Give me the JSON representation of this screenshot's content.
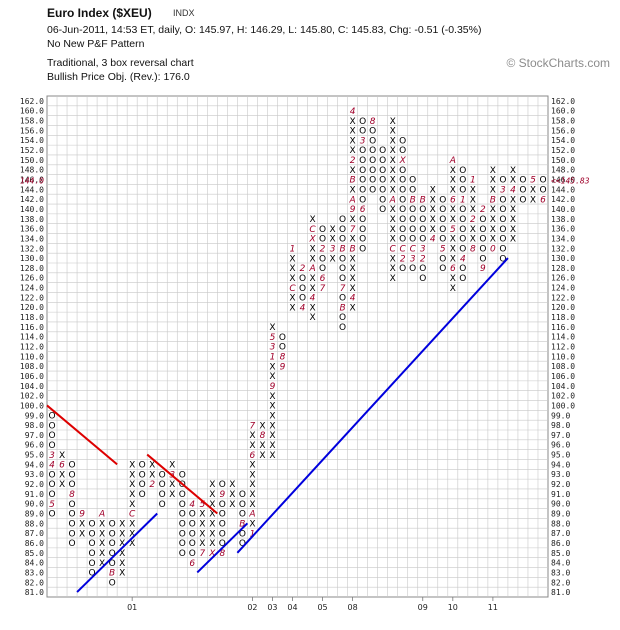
{
  "header": {
    "title": "Euro Index ($XEU)",
    "exchange": "INDX",
    "stats": "06-Jun-2011, 14:53 ET, daily, O: 145.97, H: 146.29, L: 145.80, C: 145.83, Chg: -0.51 (-0.35%)",
    "pattern": "No New P&F Pattern",
    "method": "Traditional, 3 box reversal chart",
    "objective": "Bullish Price Obj. (Rev.): 176.0",
    "brand": "© StockCharts.com"
  },
  "colors": {
    "mark": "#000000",
    "month_mark": "#a0002a",
    "trend_up": "#0000dd",
    "trend_down": "#dd0000",
    "grid": "#c8c8c8"
  },
  "chart_data": {
    "type": "point-and-figure",
    "box_size": 2,
    "reversal": 3,
    "last_price_label": "145.83",
    "ylim": [
      81,
      162
    ],
    "y_ticks": [
      "81.0",
      "82.0",
      "83.0",
      "84.0",
      "85.0",
      "86.0",
      "87.0",
      "88.0",
      "89.0",
      "90.0",
      "91.0",
      "92.0",
      "93.0",
      "94.0",
      "95.0",
      "96.0",
      "97.0",
      "98.0",
      "99.0",
      "100.0",
      "102.0",
      "104.0",
      "106.0",
      "108.0",
      "110.0",
      "112.0",
      "114.0",
      "116.0",
      "118.0",
      "120.0",
      "122.0",
      "124.0",
      "126.0",
      "128.0",
      "130.0",
      "132.0",
      "134.0",
      "136.0",
      "138.0",
      "140.0",
      "142.0",
      "144.0",
      "146.0",
      "148.0",
      "150.0",
      "152.0",
      "154.0",
      "156.0",
      "158.0",
      "160.0",
      "162.0"
    ],
    "x_labels": [
      {
        "col": 8,
        "text": "01"
      },
      {
        "col": 20,
        "text": "02"
      },
      {
        "col": 22,
        "text": "03"
      },
      {
        "col": 24,
        "text": "04"
      },
      {
        "col": 27,
        "text": "05"
      },
      {
        "col": 30,
        "text": "08"
      },
      {
        "col": 37,
        "text": "09"
      },
      {
        "col": 40,
        "text": "10"
      },
      {
        "col": 44,
        "text": "11"
      }
    ],
    "columns": [
      {
        "type": "O",
        "top": 99.0,
        "bottom": 89.0,
        "months": {
          "95.0": "3",
          "94.0": "4",
          "90.0": "5"
        }
      },
      {
        "type": "X",
        "top": 95.0,
        "bottom": 92.0,
        "months": {
          "94.0": "6"
        }
      },
      {
        "type": "O",
        "top": 94.0,
        "bottom": 86.0,
        "months": {
          "95.0": "7",
          "91.0": "8"
        }
      },
      {
        "type": "X",
        "top": 89.0,
        "bottom": 87.0,
        "months": {
          "89.0": "9"
        }
      },
      {
        "type": "O",
        "top": 88.0,
        "bottom": 83.0
      },
      {
        "type": "X",
        "top": 89.0,
        "bottom": 84.0,
        "months": {
          "89.0": "A"
        }
      },
      {
        "type": "O",
        "top": 88.0,
        "bottom": 82.0,
        "months": {
          "83.0": "B"
        }
      },
      {
        "type": "X",
        "top": 88.0,
        "bottom": 83.0
      },
      {
        "type": "X",
        "top": 94.0,
        "bottom": 86.0,
        "months": {
          "95.0": "1",
          "89.0": "C"
        }
      },
      {
        "type": "O",
        "top": 94.0,
        "bottom": 91.0
      },
      {
        "type": "X",
        "top": 94.0,
        "bottom": 92.0,
        "months": {
          "92.0": "2"
        }
      },
      {
        "type": "O",
        "top": 93.0,
        "bottom": 90.0
      },
      {
        "type": "X",
        "top": 94.0,
        "bottom": 91.0,
        "months": {
          "93.0": "3"
        }
      },
      {
        "type": "O",
        "top": 93.0,
        "bottom": 85.0
      },
      {
        "type": "O",
        "top": 90.0,
        "bottom": 84.0,
        "months": {
          "90.0": "4",
          "84.0": "6"
        }
      },
      {
        "type": "X",
        "top": 90.0,
        "bottom": 85.0,
        "months": {
          "90.0": "5",
          "85.0": "7"
        }
      },
      {
        "type": "X",
        "top": 92.0,
        "bottom": 85.0,
        "months": {
          "85.0": "X"
        }
      },
      {
        "type": "O",
        "top": 92.0,
        "bottom": 85.0,
        "months": {
          "91.0": "9",
          "85.0": "8"
        }
      },
      {
        "type": "X",
        "top": 92.0,
        "bottom": 90.0
      },
      {
        "type": "O",
        "top": 91.0,
        "bottom": 86.0,
        "months": {
          "88.0": "B"
        }
      },
      {
        "type": "X",
        "top": 98.0,
        "bottom": 87.0,
        "months": {
          "98.0": "7",
          "95.0": "6",
          "89.0": "A",
          "87.0": "1"
        }
      },
      {
        "type": "X",
        "top": 98.0,
        "bottom": 95.0,
        "months": {
          "97.0": "8"
        }
      },
      {
        "type": "X",
        "top": 116.0,
        "bottom": 95.0,
        "months": {
          "110.0": "1",
          "114.0": "5",
          "112.0": "3",
          "104.0": "9"
        }
      },
      {
        "type": "O",
        "top": 114.0,
        "bottom": 108.0,
        "months": {
          "110.0": "8",
          "108.0": "9"
        }
      },
      {
        "type": "X",
        "top": 132.0,
        "bottom": 120.0,
        "months": {
          "132.0": "1",
          "124.0": "C"
        }
      },
      {
        "type": "O",
        "top": 128.0,
        "bottom": 120.0,
        "months": {
          "120.0": "4",
          "128.0": "2"
        }
      },
      {
        "type": "X",
        "top": 138.0,
        "bottom": 118.0,
        "months": {
          "136.0": "C",
          "134.0": "X",
          "128.0": "A",
          "122.0": "4"
        }
      },
      {
        "type": "O",
        "top": 136.0,
        "bottom": 124.0,
        "months": {
          "132.0": "2",
          "124.0": "7",
          "126.0": "6"
        }
      },
      {
        "type": "X",
        "top": 136.0,
        "bottom": 130.0,
        "months": {
          "132.0": "3"
        }
      },
      {
        "type": "O",
        "top": 138.0,
        "bottom": 116.0,
        "months": {
          "132.0": "B",
          "124.0": "7",
          "120.0": "B"
        }
      },
      {
        "type": "X",
        "top": 160.0,
        "bottom": 120.0,
        "months": {
          "160.0": "4",
          "150.0": "2",
          "146.0": "B",
          "142.0": "A",
          "140.0": "9",
          "136.0": "7",
          "132.0": "B",
          "122.0": "4"
        }
      },
      {
        "type": "O",
        "top": 158.0,
        "bottom": 132.0,
        "months": {
          "154.0": "3",
          "140.0": "6"
        }
      },
      {
        "type": "O",
        "top": 158.0,
        "bottom": 144.0,
        "months": {
          "158.0": "8"
        }
      },
      {
        "type": "O",
        "top": 152.0,
        "bottom": 140.0
      },
      {
        "type": "X",
        "top": 158.0,
        "bottom": 126.0,
        "months": {
          "160.0": "X",
          "142.0": "A",
          "132.0": "C"
        }
      },
      {
        "type": "O",
        "top": 154.0,
        "bottom": 128.0,
        "months": {
          "150.0": "X",
          "132.0": "C",
          "130.0": "2"
        }
      },
      {
        "type": "O",
        "top": 146.0,
        "bottom": 128.0,
        "months": {
          "142.0": "B",
          "132.0": "C",
          "130.0": "3"
        }
      },
      {
        "type": "O",
        "top": 142.0,
        "bottom": 126.0,
        "months": {
          "142.0": "B",
          "132.0": "3",
          "130.0": "2"
        }
      },
      {
        "type": "X",
        "top": 144.0,
        "bottom": 134.0,
        "months": {
          "134.0": "4"
        }
      },
      {
        "type": "O",
        "top": 142.0,
        "bottom": 128.0,
        "months": {
          "132.0": "5"
        }
      },
      {
        "type": "X",
        "top": 150.0,
        "bottom": 124.0,
        "months": {
          "150.0": "A",
          "142.0": "6",
          "136.0": "5",
          "128.0": "6"
        }
      },
      {
        "type": "O",
        "top": 148.0,
        "bottom": 126.0,
        "months": {
          "142.0": "1",
          "130.0": "4",
          "124.0": "7"
        }
      },
      {
        "type": "X",
        "top": 146.0,
        "bottom": 132.0,
        "months": {
          "146.0": "1",
          "138.0": "2",
          "132.0": "8"
        }
      },
      {
        "type": "O",
        "top": 140.0,
        "bottom": 128.0,
        "months": {
          "140.0": "2",
          "128.0": "9"
        }
      },
      {
        "type": "X",
        "top": 148.0,
        "bottom": 132.0,
        "months": {
          "142.0": "B",
          "132.0": "0"
        }
      },
      {
        "type": "O",
        "top": 146.0,
        "bottom": 130.0,
        "months": {
          "144.0": "3"
        }
      },
      {
        "type": "X",
        "top": 148.0,
        "bottom": 134.0,
        "months": {
          "144.0": "4"
        }
      },
      {
        "type": "O",
        "top": 146.0,
        "bottom": 142.0
      },
      {
        "type": "X",
        "top": 146.0,
        "bottom": 142.0,
        "months": {
          "146.0": "5"
        }
      },
      {
        "type": "O",
        "top": 146.0,
        "bottom": 142.0,
        "months": {
          "142.0": "6"
        }
      }
    ],
    "trendlines": [
      {
        "type": "down",
        "from": {
          "col": 0,
          "y": 100.0
        },
        "to": {
          "col": 6,
          "y": 94.0
        }
      },
      {
        "type": "down",
        "from": {
          "col": 10,
          "y": 95.0
        },
        "to": {
          "col": 16,
          "y": 89.0
        }
      },
      {
        "type": "up",
        "from": {
          "col": 3,
          "y": 81.0
        },
        "to": {
          "col": 10,
          "y": 89.0
        }
      },
      {
        "type": "up",
        "from": {
          "col": 15,
          "y": 83.0
        },
        "to": {
          "col": 19,
          "y": 88.0
        }
      },
      {
        "type": "up",
        "from": {
          "col": 19,
          "y": 85.0
        },
        "to": {
          "col": 45,
          "y": 130.0
        }
      }
    ]
  }
}
